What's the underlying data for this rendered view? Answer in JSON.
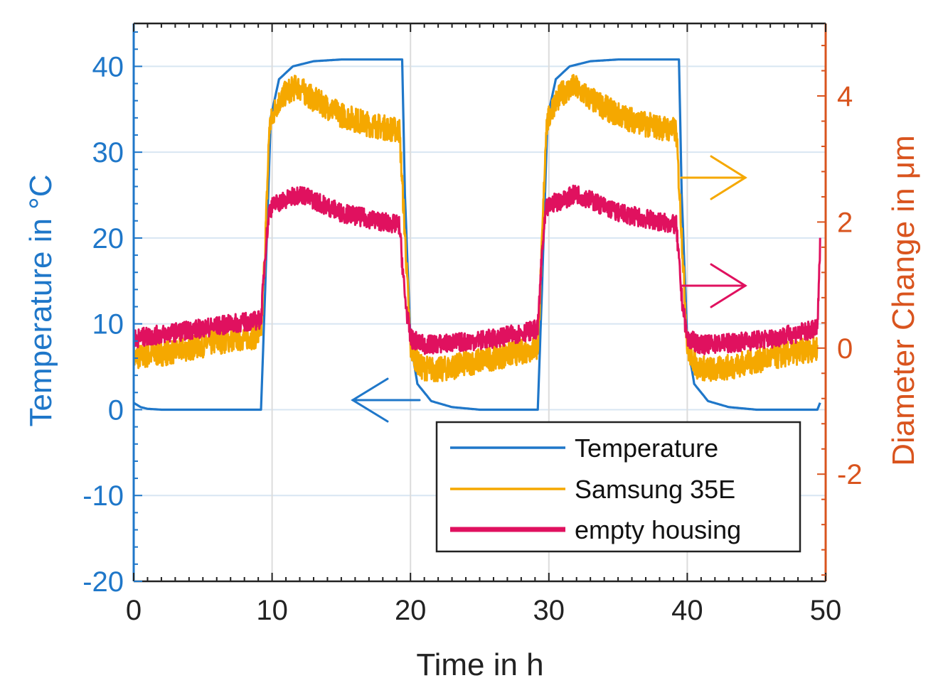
{
  "chart_data": {
    "type": "line",
    "title": "",
    "xlabel": "Time in h",
    "ylabel_left": "Temperature in °C",
    "ylabel_right": "Diameter Change in μm",
    "xlim": [
      0,
      50
    ],
    "ylim_left": [
      -20,
      45
    ],
    "ylim_right": [
      -3.7,
      5.15
    ],
    "x_ticks": [
      0,
      10,
      20,
      30,
      40,
      50
    ],
    "y_left_ticks": [
      -20,
      -10,
      0,
      10,
      20,
      30,
      40
    ],
    "y_right_ticks": [
      -2,
      0,
      2,
      4
    ],
    "grid": true,
    "legend_position": "bottom-right",
    "colors": {
      "temperature": "#1f77c9",
      "samsung": "#f5a800",
      "empty": "#e0115f",
      "left_axis": "#1f77c9",
      "right_axis": "#d9541e",
      "grid": "#d8e6f2"
    },
    "series": [
      {
        "name": "Temperature",
        "axis": "left",
        "x": [
          0,
          0.5,
          1,
          2,
          3,
          5,
          9.2,
          9.5,
          9.9,
          10.5,
          11.5,
          13,
          15,
          19.4,
          19.6,
          20,
          20.5,
          21.5,
          23,
          25,
          29.2,
          29.5,
          29.9,
          30.5,
          31.5,
          33,
          35,
          39.4,
          39.6,
          40,
          40.5,
          41.5,
          43,
          45,
          49.4,
          49.6
        ],
        "values": [
          0.8,
          0.3,
          0.1,
          0,
          0,
          0,
          0,
          14,
          34,
          38.5,
          40,
          40.6,
          40.8,
          40.8,
          25,
          8,
          3,
          1,
          0.3,
          0,
          0,
          14,
          34,
          38.5,
          40,
          40.6,
          40.8,
          40.8,
          25,
          8,
          3,
          1,
          0.3,
          0,
          0,
          0.8
        ]
      },
      {
        "name": "Samsung 35E",
        "axis": "right",
        "x": [
          0,
          3,
          6,
          9.2,
          9.5,
          9.8,
          10.3,
          11,
          11.8,
          13,
          15,
          17,
          19.2,
          19.6,
          20,
          20.7,
          22,
          25,
          29.2,
          29.5,
          29.8,
          30.3,
          31,
          31.8,
          33,
          35,
          37,
          39.2,
          39.6,
          40,
          40.7,
          42,
          45,
          49.4
        ],
        "values": [
          -0.15,
          -0.05,
          0.1,
          0.2,
          1.6,
          3.5,
          3.85,
          4.05,
          4.15,
          3.95,
          3.7,
          3.55,
          3.45,
          1.8,
          0,
          -0.3,
          -0.35,
          -0.2,
          0,
          1.6,
          3.5,
          3.85,
          4.05,
          4.15,
          3.95,
          3.7,
          3.55,
          3.45,
          1.8,
          0,
          -0.3,
          -0.35,
          -0.2,
          0
        ]
      },
      {
        "name": "empty housing",
        "axis": "right",
        "x": [
          0,
          3,
          6,
          9.2,
          9.5,
          9.8,
          10.3,
          11,
          12,
          13.5,
          15,
          17,
          19.2,
          19.6,
          20,
          21,
          23,
          26,
          29.2,
          29.5,
          29.8,
          30.3,
          31,
          32,
          33.5,
          35,
          37,
          39.2,
          39.6,
          40,
          41,
          43,
          46,
          49.4,
          49.5,
          49.6
        ],
        "values": [
          0.15,
          0.25,
          0.35,
          0.45,
          1.5,
          2.2,
          2.3,
          2.35,
          2.45,
          2.3,
          2.15,
          2.05,
          1.95,
          0.8,
          0.15,
          0.05,
          0.08,
          0.15,
          0.3,
          1.5,
          2.2,
          2.3,
          2.35,
          2.45,
          2.3,
          2.15,
          2.05,
          1.95,
          0.8,
          0.15,
          0.05,
          0.08,
          0.15,
          0.3,
          0.9,
          1.65
        ]
      }
    ]
  }
}
